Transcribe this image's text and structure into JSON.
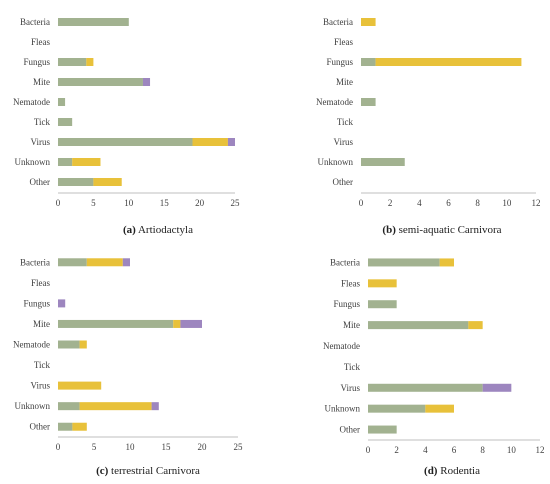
{
  "colors": {
    "green": "#a2b290",
    "yellow": "#e8c13a",
    "purple": "#9d86bf",
    "grid": "#d9d9d9",
    "axis": "#bfbfbf"
  },
  "chart_data": [
    {
      "type": "bar",
      "orientation": "horizontal",
      "stacked": true,
      "caption_letter": "(a)",
      "caption_text": "Artiodactyla",
      "categories": [
        "Bacteria",
        "Fleas",
        "Fungus",
        "Mite",
        "Nematode",
        "Tick",
        "Virus",
        "Unknown",
        "Other"
      ],
      "series": [
        {
          "values": [
            10,
            0,
            4,
            12,
            1,
            2,
            19,
            2,
            5
          ]
        },
        {
          "values": [
            0,
            0,
            1,
            0,
            0,
            0,
            5,
            4,
            4
          ]
        },
        {
          "values": [
            0,
            0,
            0,
            1,
            0,
            0,
            1,
            0,
            0
          ]
        }
      ],
      "xlim": [
        0,
        25
      ],
      "ticks": [
        0,
        5,
        10,
        15,
        20,
        25
      ],
      "grid": false
    },
    {
      "type": "bar",
      "orientation": "horizontal",
      "stacked": true,
      "caption_letter": "(b)",
      "caption_text": "semi-aquatic Carnivora",
      "categories": [
        "Bacteria",
        "Fleas",
        "Fungus",
        "Mite",
        "Nematode",
        "Tick",
        "Virus",
        "Unknown",
        "Other"
      ],
      "series": [
        {
          "values": [
            0,
            0,
            1,
            0,
            1,
            0,
            0,
            3,
            0
          ]
        },
        {
          "values": [
            1,
            0,
            10,
            0,
            0,
            0,
            0,
            0,
            0
          ]
        },
        {
          "values": [
            0,
            0,
            0,
            0,
            0,
            0,
            0,
            0,
            0
          ]
        }
      ],
      "xlim": [
        0,
        12
      ],
      "ticks": [
        0,
        2,
        4,
        6,
        8,
        10,
        12
      ],
      "grid": false
    },
    {
      "type": "bar",
      "orientation": "horizontal",
      "stacked": true,
      "caption_letter": "(c)",
      "caption_text": "terrestrial Carnivora",
      "categories": [
        "Bacteria",
        "Fleas",
        "Fungus",
        "Mite",
        "Nematode",
        "Tick",
        "Virus",
        "Unknown",
        "Other"
      ],
      "series": [
        {
          "values": [
            4,
            0,
            0,
            16,
            3,
            0,
            0,
            3,
            2
          ]
        },
        {
          "values": [
            5,
            0,
            0,
            1,
            1,
            0,
            6,
            10,
            2
          ]
        },
        {
          "values": [
            1,
            0,
            1,
            3,
            0,
            0,
            0,
            1,
            0
          ]
        }
      ],
      "xlim": [
        0,
        25
      ],
      "ticks": [
        0,
        5,
        10,
        15,
        20,
        25
      ],
      "grid": false
    },
    {
      "type": "bar",
      "orientation": "horizontal",
      "stacked": true,
      "caption_letter": "(d)",
      "caption_text": "Rodentia",
      "categories": [
        "Bacteria",
        "Fleas",
        "Fungus",
        "Mite",
        "Nematode",
        "Tick",
        "Virus",
        "Unknown",
        "Other"
      ],
      "series": [
        {
          "values": [
            5,
            0,
            2,
            7,
            0,
            0,
            8,
            4,
            2
          ]
        },
        {
          "values": [
            1,
            2,
            0,
            1,
            0,
            0,
            0,
            2,
            0
          ]
        },
        {
          "values": [
            0,
            0,
            0,
            0,
            0,
            0,
            2,
            0,
            0
          ]
        }
      ],
      "xlim": [
        0,
        12
      ],
      "ticks": [
        0,
        2,
        4,
        6,
        8,
        10,
        12
      ],
      "grid": false
    }
  ]
}
